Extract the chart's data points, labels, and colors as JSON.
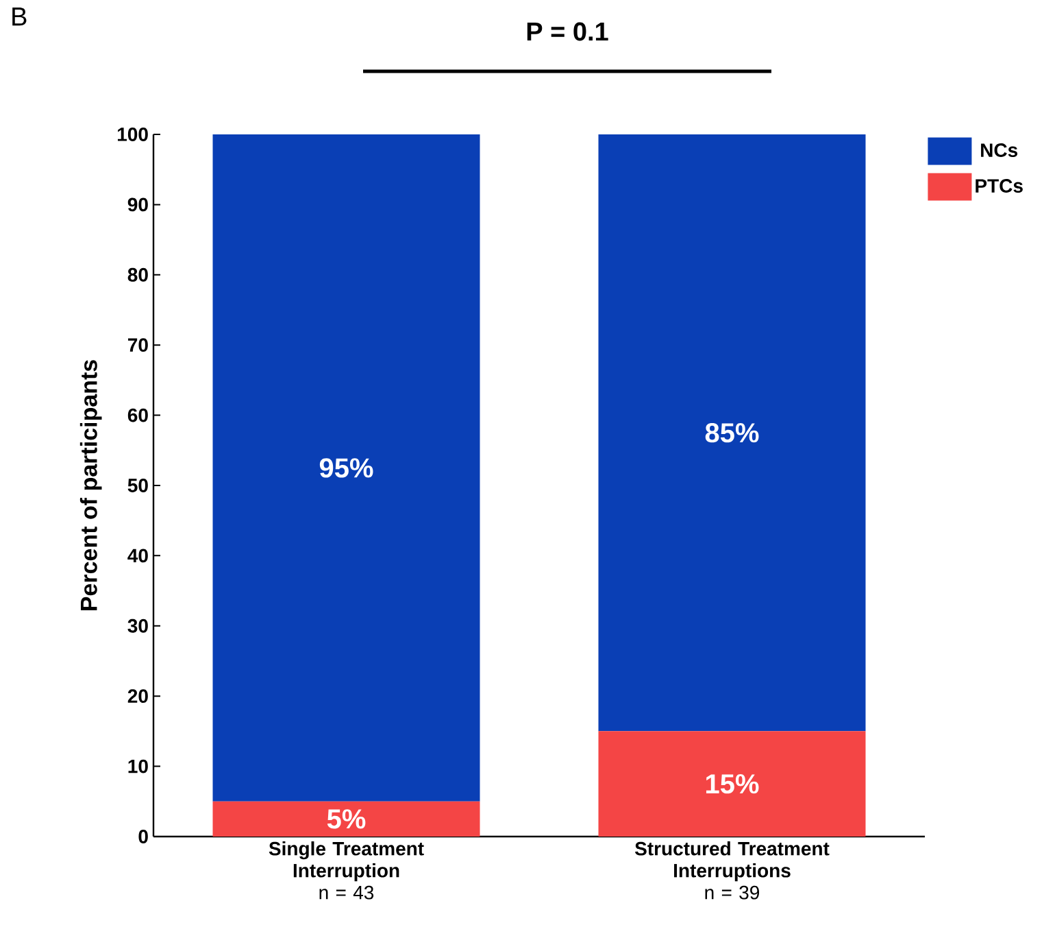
{
  "chart_data": {
    "type": "bar",
    "stacked": true,
    "ylabel": "Percent of participants",
    "categories": [
      "Single Treatment Interruption",
      "Structured Treatment Interruptions"
    ],
    "series": [
      {
        "name": "PTCs",
        "color": "#f44545",
        "values": [
          5,
          15
        ],
        "value_labels": [
          "5%",
          "15%"
        ]
      },
      {
        "name": "NCs",
        "color": "#0a3fb5",
        "values": [
          95,
          85
        ],
        "value_labels": [
          "95%",
          "85%"
        ]
      }
    ],
    "ylim": [
      0,
      100
    ],
    "yticks": [
      0,
      10,
      20,
      30,
      40,
      50,
      60,
      70,
      80,
      90,
      100
    ],
    "legend": "top right",
    "annotations": [
      "B",
      "P = 0.1",
      "n = 43",
      "n = 39"
    ]
  }
}
